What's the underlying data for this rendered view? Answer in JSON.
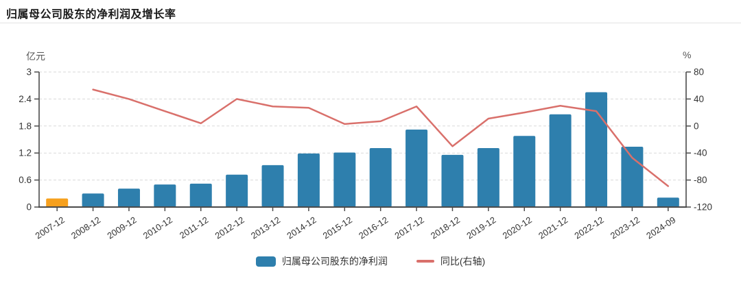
{
  "header": {
    "title": "归属母公司股东的净利润及增长率"
  },
  "chart_data": {
    "type": "bar",
    "title": "归属母公司股东的净利润及增长率",
    "categories": [
      "2007-12",
      "2008-12",
      "2009-12",
      "2010-12",
      "2011-12",
      "2012-12",
      "2013-12",
      "2014-12",
      "2015-12",
      "2016-12",
      "2017-12",
      "2018-12",
      "2019-12",
      "2020-12",
      "2021-12",
      "2022-12",
      "2023-12",
      "2024-09"
    ],
    "series": [
      {
        "name": "归属母公司股东的净利润",
        "type": "bar",
        "axis": "left",
        "color": "#2e7fad",
        "point_colors": {
          "0": "#f6a01e"
        },
        "values": [
          0.19,
          0.3,
          0.41,
          0.5,
          0.52,
          0.72,
          0.93,
          1.19,
          1.21,
          1.31,
          1.72,
          1.16,
          1.31,
          1.58,
          2.06,
          2.55,
          1.34,
          0.21
        ]
      },
      {
        "name": "同比(右轴)",
        "type": "line",
        "axis": "right",
        "color": "#d9706b",
        "values": [
          null,
          54,
          40,
          22,
          4,
          40,
          29,
          27,
          3,
          7,
          29,
          -30,
          11,
          20,
          30,
          22,
          -47,
          -89
        ]
      }
    ],
    "left_axis": {
      "unit": "亿元",
      "min": 0,
      "max": 3,
      "ticks": [
        0,
        0.6,
        1.2,
        1.8,
        2.4,
        3
      ]
    },
    "right_axis": {
      "unit": "%",
      "min": -120,
      "max": 80,
      "ticks": [
        -120,
        -80,
        -40,
        0,
        40,
        80
      ]
    },
    "grid": "horizontal-dashed",
    "legend_position": "bottom-center"
  },
  "legend": {
    "items": [
      {
        "label": "归属母公司股东的净利润",
        "marker": "bar-swatch",
        "color": "#2e7fad"
      },
      {
        "label": "同比(右轴)",
        "marker": "line-swatch",
        "color": "#d9706b"
      }
    ]
  },
  "colors": {
    "bar_blue": "#2e7fad",
    "bar_orange_highlight": "#f6a01e",
    "line_red": "#d9706b",
    "axis": "#4a4a4a",
    "gridline": "#d9d9d9",
    "tick_text": "#333333"
  }
}
